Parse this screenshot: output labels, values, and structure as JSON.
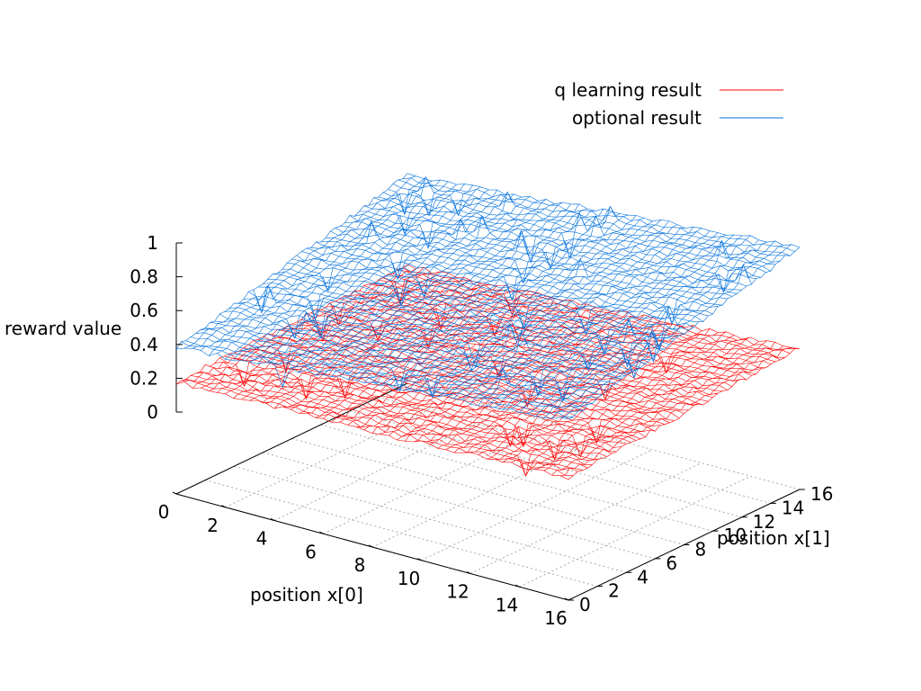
{
  "chart_data": {
    "type": "surface",
    "title": "",
    "xlabel": "position x[0]",
    "ylabel": "position x[1]",
    "zlabel": "reward value",
    "xlim": [
      0,
      16
    ],
    "ylim": [
      0,
      16
    ],
    "zlim": [
      0,
      1
    ],
    "x_ticks": [
      "0",
      "2",
      "4",
      "6",
      "8",
      "10",
      "12",
      "14",
      "16"
    ],
    "y_ticks": [
      "0",
      "2",
      "4",
      "6",
      "8",
      "10",
      "12",
      "14",
      "16"
    ],
    "z_ticks": [
      "0",
      "0.2",
      "0.4",
      "0.6",
      "0.8",
      "1"
    ],
    "grid": true,
    "legend_position": "top-right",
    "series": [
      {
        "name": "q learning result",
        "color": "#ff0000",
        "base": 0.18,
        "peak": 0.35
      },
      {
        "name": "optional result",
        "color": "#0070dd",
        "base": 0.38,
        "peak": 0.95
      }
    ]
  }
}
